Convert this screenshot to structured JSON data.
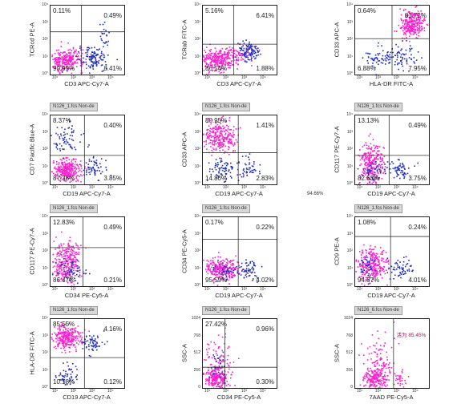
{
  "chart_data": [
    {
      "type": "scatter",
      "title": "",
      "xlabel": "CD3 APC-Cy7-A",
      "ylabel": "TCRcd PE-A",
      "x_ticks": [
        "10¹",
        "10²",
        "10³",
        "10⁴"
      ],
      "y_ticks": [
        "10°",
        "10¹",
        "10²",
        "10³",
        "10⁴"
      ],
      "quadrants": {
        "ul": "0.11%",
        "ur": "0.49%",
        "ll": "90.99%",
        "lr": "8.41%"
      },
      "gate": [
        0.42,
        0.62
      ],
      "clusters": [
        {
          "color": "#ff1fcf",
          "cx": 0.2,
          "cy": 0.22,
          "sx": 0.12,
          "sy": 0.08,
          "n": 260
        },
        {
          "color": "#1f2fc0",
          "cx": 0.58,
          "cy": 0.24,
          "sx": 0.1,
          "sy": 0.08,
          "n": 120
        },
        {
          "color": "#1f2fc0",
          "cx": 0.72,
          "cy": 0.55,
          "sx": 0.05,
          "sy": 0.12,
          "n": 25
        }
      ]
    },
    {
      "type": "scatter",
      "title": "",
      "xlabel": "CD3 APC-Cy7-A",
      "ylabel": "TCRab FITC-A",
      "x_ticks": [
        "10¹",
        "10²",
        "10³",
        "10⁴"
      ],
      "y_ticks": [
        "10°",
        "10¹",
        "10²",
        "10³",
        "10⁴"
      ],
      "quadrants": {
        "ul": "5.16%",
        "ur": "6.41%",
        "ll": "86.54%",
        "lr": "1.88%"
      },
      "gate": [
        0.42,
        0.44
      ],
      "clusters": [
        {
          "color": "#ff1fcf",
          "cx": 0.2,
          "cy": 0.22,
          "sx": 0.12,
          "sy": 0.08,
          "n": 260
        },
        {
          "color": "#1f2fc0",
          "cx": 0.6,
          "cy": 0.34,
          "sx": 0.07,
          "sy": 0.07,
          "n": 120
        },
        {
          "color": "#ff1fcf",
          "cx": 0.42,
          "cy": 0.3,
          "sx": 0.15,
          "sy": 0.06,
          "n": 70
        }
      ]
    },
    {
      "type": "scatter",
      "title": "",
      "xlabel": "HLA-DR FITC-A",
      "ylabel": "CD33 APC-A",
      "x_ticks": [
        "10¹",
        "10²",
        "10³",
        "10⁴"
      ],
      "y_ticks": [
        "10°",
        "10¹",
        "10²",
        "10³",
        "10⁴"
      ],
      "quadrants": {
        "ul": "0.64%",
        "ur": "81.72%",
        "ll": "6.88%",
        "lr": "7.95%"
      },
      "gate": [
        0.5,
        0.52
      ],
      "clusters": [
        {
          "color": "#ff1fcf",
          "cx": 0.76,
          "cy": 0.74,
          "sx": 0.08,
          "sy": 0.09,
          "n": 280
        },
        {
          "color": "#1f2fc0",
          "cx": 0.34,
          "cy": 0.24,
          "sx": 0.1,
          "sy": 0.08,
          "n": 70
        },
        {
          "color": "#1f2fc0",
          "cx": 0.66,
          "cy": 0.28,
          "sx": 0.08,
          "sy": 0.1,
          "n": 60
        }
      ]
    },
    {
      "type": "scatter",
      "title": "N126_1.fcs  Non-de",
      "xlabel": "CD19 APC-Cy7-A",
      "ylabel": "CD7 Pacific Blue-A",
      "x_ticks": [
        "10¹",
        "10²",
        "10³",
        "10⁴"
      ],
      "y_ticks": [
        "10°",
        "10¹",
        "10²",
        "10³",
        "10⁴"
      ],
      "quadrants": {
        "ul": "8.37%",
        "ur": "0.40%",
        "ll": "87.38%",
        "lr": "3.85%"
      },
      "gate": [
        0.46,
        0.42
      ],
      "clusters": [
        {
          "color": "#ff1fcf",
          "cx": 0.22,
          "cy": 0.22,
          "sx": 0.1,
          "sy": 0.08,
          "n": 280
        },
        {
          "color": "#1f2fc0",
          "cx": 0.22,
          "cy": 0.68,
          "sx": 0.1,
          "sy": 0.1,
          "n": 70
        },
        {
          "color": "#1f2fc0",
          "cx": 0.6,
          "cy": 0.24,
          "sx": 0.08,
          "sy": 0.08,
          "n": 60
        }
      ]
    },
    {
      "type": "scatter",
      "title": "N126_1.fcs  Non-de",
      "xlabel": "CD19 APC-Cy7-A",
      "ylabel": "CD33 APC-A",
      "x_ticks": [
        "10¹",
        "10²",
        "10³",
        "10⁴"
      ],
      "y_ticks": [
        "10°",
        "10¹",
        "10²",
        "10³",
        "10⁴"
      ],
      "quadrants": {
        "ul": "80.95%",
        "ur": "1.41%",
        "ll": "14.80%",
        "lr": "2.83%"
      },
      "gate": [
        0.48,
        0.46
      ],
      "clusters": [
        {
          "color": "#ff1fcf",
          "cx": 0.22,
          "cy": 0.7,
          "sx": 0.11,
          "sy": 0.11,
          "n": 280
        },
        {
          "color": "#1f2fc0",
          "cx": 0.26,
          "cy": 0.22,
          "sx": 0.09,
          "sy": 0.08,
          "n": 70
        },
        {
          "color": "#1f2fc0",
          "cx": 0.58,
          "cy": 0.22,
          "sx": 0.08,
          "sy": 0.08,
          "n": 50
        }
      ]
    },
    {
      "type": "scatter",
      "title": "N126_1.fcs  Non-de",
      "xlabel": "CD19 APC-Cy7-A",
      "ylabel": "CD117 PE-Cy7-A",
      "x_ticks": [
        "10¹",
        "10²",
        "10³",
        "10⁴"
      ],
      "y_ticks": [
        "10°",
        "10¹",
        "10²",
        "10³",
        "10⁴"
      ],
      "quadrants": {
        "ul": "13.13%",
        "ur": "0.49%",
        "ll": "82.63%",
        "lr": "3.75%"
      },
      "gate": [
        0.46,
        0.42
      ],
      "clusters": [
        {
          "color": "#ff1fcf",
          "cx": 0.2,
          "cy": 0.3,
          "sx": 0.08,
          "sy": 0.16,
          "n": 280
        },
        {
          "color": "#1f2fc0",
          "cx": 0.6,
          "cy": 0.22,
          "sx": 0.08,
          "sy": 0.08,
          "n": 60
        },
        {
          "color": "#1f2fc0",
          "cx": 0.24,
          "cy": 0.2,
          "sx": 0.08,
          "sy": 0.06,
          "n": 40
        }
      ]
    },
    {
      "type": "scatter",
      "title": "N126_1.fcs  Non-de",
      "xlabel": "CD34 PE-Cy5-A",
      "ylabel": "CD117 PE-Cy7-A",
      "x_ticks": [
        "10¹",
        "10²",
        "10³",
        "10⁴"
      ],
      "y_ticks": [
        "10°",
        "10¹",
        "10²",
        "10³",
        "10⁴"
      ],
      "quadrants": {
        "ul": "12.83%",
        "ur": "0.49%",
        "ll": "86.47%",
        "lr": "0.21%"
      },
      "gate": [
        0.44,
        0.56
      ],
      "clusters": [
        {
          "color": "#ff1fcf",
          "cx": 0.2,
          "cy": 0.34,
          "sx": 0.1,
          "sy": 0.16,
          "n": 300
        },
        {
          "color": "#1f2fc0",
          "cx": 0.28,
          "cy": 0.22,
          "sx": 0.1,
          "sy": 0.08,
          "n": 60
        }
      ]
    },
    {
      "type": "scatter",
      "title": "N126_1.fcs  Non-de",
      "xlabel": "CD19 APC-Cy7-A",
      "ylabel": "CD34 PE-Cy5-A",
      "x_ticks": [
        "10¹",
        "10²",
        "10³",
        "10⁴"
      ],
      "y_ticks": [
        "10°",
        "10¹",
        "10²",
        "10³",
        "10⁴"
      ],
      "quadrants": {
        "ul": "0.17%",
        "ur": "0.22%",
        "ll": "95.59%",
        "lr": "4.02%"
      },
      "gate": [
        0.48,
        0.68
      ],
      "clusters": [
        {
          "color": "#ff1fcf",
          "cx": 0.24,
          "cy": 0.26,
          "sx": 0.1,
          "sy": 0.08,
          "n": 280
        },
        {
          "color": "#1f2fc0",
          "cx": 0.6,
          "cy": 0.26,
          "sx": 0.08,
          "sy": 0.08,
          "n": 60
        },
        {
          "color": "#1f2fc0",
          "cx": 0.3,
          "cy": 0.24,
          "sx": 0.1,
          "sy": 0.06,
          "n": 40
        }
      ]
    },
    {
      "type": "scatter",
      "title": "N126_1.fcs  Non-de",
      "xlabel": "CD19 APC-Cy7-A",
      "ylabel": "CD9 PE-A",
      "x_ticks": [
        "10¹",
        "10²",
        "10³",
        "10⁴"
      ],
      "y_ticks": [
        "10°",
        "10¹",
        "10²",
        "10³",
        "10⁴"
      ],
      "quadrants": {
        "ul": "1.08%",
        "ur": "0.24%",
        "ll": "94.67%",
        "lr": "4.01%"
      },
      "gate": [
        0.48,
        0.72
      ],
      "clusters": [
        {
          "color": "#ff1fcf",
          "cx": 0.22,
          "cy": 0.32,
          "sx": 0.1,
          "sy": 0.12,
          "n": 280
        },
        {
          "color": "#1f2fc0",
          "cx": 0.6,
          "cy": 0.26,
          "sx": 0.08,
          "sy": 0.08,
          "n": 60
        },
        {
          "color": "#1f2fc0",
          "cx": 0.14,
          "cy": 0.3,
          "sx": 0.06,
          "sy": 0.1,
          "n": 40
        }
      ]
    },
    {
      "type": "scatter",
      "title": "N126_1.fcs  Non-de",
      "xlabel": "CD19 APC-Cy7-A",
      "ylabel": "HLA-DR FITC-A",
      "x_ticks": [
        "10¹",
        "10²",
        "10³",
        "10⁴"
      ],
      "y_ticks": [
        "10°",
        "10¹",
        "10²",
        "10³",
        "10⁴"
      ],
      "quadrants": {
        "ul": "85.55%",
        "ur": "4.16%",
        "ll": "10.18%",
        "lr": "0.12%"
      },
      "gate": [
        0.46,
        0.44
      ],
      "clusters": [
        {
          "color": "#ff1fcf",
          "cx": 0.22,
          "cy": 0.74,
          "sx": 0.1,
          "sy": 0.08,
          "n": 280
        },
        {
          "color": "#1f2fc0",
          "cx": 0.56,
          "cy": 0.66,
          "sx": 0.07,
          "sy": 0.06,
          "n": 60
        },
        {
          "color": "#1f2fc0",
          "cx": 0.22,
          "cy": 0.2,
          "sx": 0.08,
          "sy": 0.08,
          "n": 50
        }
      ]
    },
    {
      "type": "scatter",
      "title": "N126_1.fcs  Non-de",
      "xlabel": "CD34 PE-Cy5-A",
      "ylabel": "SSC-A",
      "x_ticks": [
        "10¹",
        "10²",
        "10³",
        "10⁴"
      ],
      "y_ticks": [
        "0",
        "256",
        "512",
        "768",
        "1024"
      ],
      "quadrants": {
        "ul": "27.42%",
        "ur": "0.96%",
        "ll": "",
        "lr": "0.30%"
      },
      "gate": [
        0.3,
        0.3
      ],
      "clusters": [
        {
          "color": "#ff1fcf",
          "cx": 0.18,
          "cy": 0.14,
          "sx": 0.08,
          "sy": 0.08,
          "n": 220
        },
        {
          "color": "#ff1fcf",
          "cx": 0.22,
          "cy": 0.4,
          "sx": 0.1,
          "sy": 0.18,
          "n": 100
        },
        {
          "color": "#1f2fc0",
          "cx": 0.2,
          "cy": 0.3,
          "sx": 0.08,
          "sy": 0.12,
          "n": 30
        }
      ]
    },
    {
      "type": "scatter",
      "title": "N126_6.fcs  Non-de",
      "xlabel": "7AAD PE-Cy5-A",
      "ylabel": "SSC-A",
      "x_ticks": [
        "10¹",
        "10²",
        "10³",
        "10⁴"
      ],
      "y_ticks": [
        "0",
        "256",
        "512",
        "768",
        "1024"
      ],
      "quadrants": {
        "ul": "",
        "ur": "",
        "ll": "",
        "lr": ""
      },
      "gate_label": "活为 85.45%",
      "gate": [
        0.52,
        -1
      ],
      "clusters": [
        {
          "color": "#ff1fcf",
          "cx": 0.26,
          "cy": 0.14,
          "sx": 0.08,
          "sy": 0.08,
          "n": 200
        },
        {
          "color": "#ff1fcf",
          "cx": 0.32,
          "cy": 0.44,
          "sx": 0.1,
          "sy": 0.18,
          "n": 90
        },
        {
          "color": "#ff1fcf",
          "cx": 0.6,
          "cy": 0.14,
          "sx": 0.04,
          "sy": 0.06,
          "n": 30
        }
      ]
    }
  ],
  "page": {
    "stray_label": "94.66%"
  }
}
